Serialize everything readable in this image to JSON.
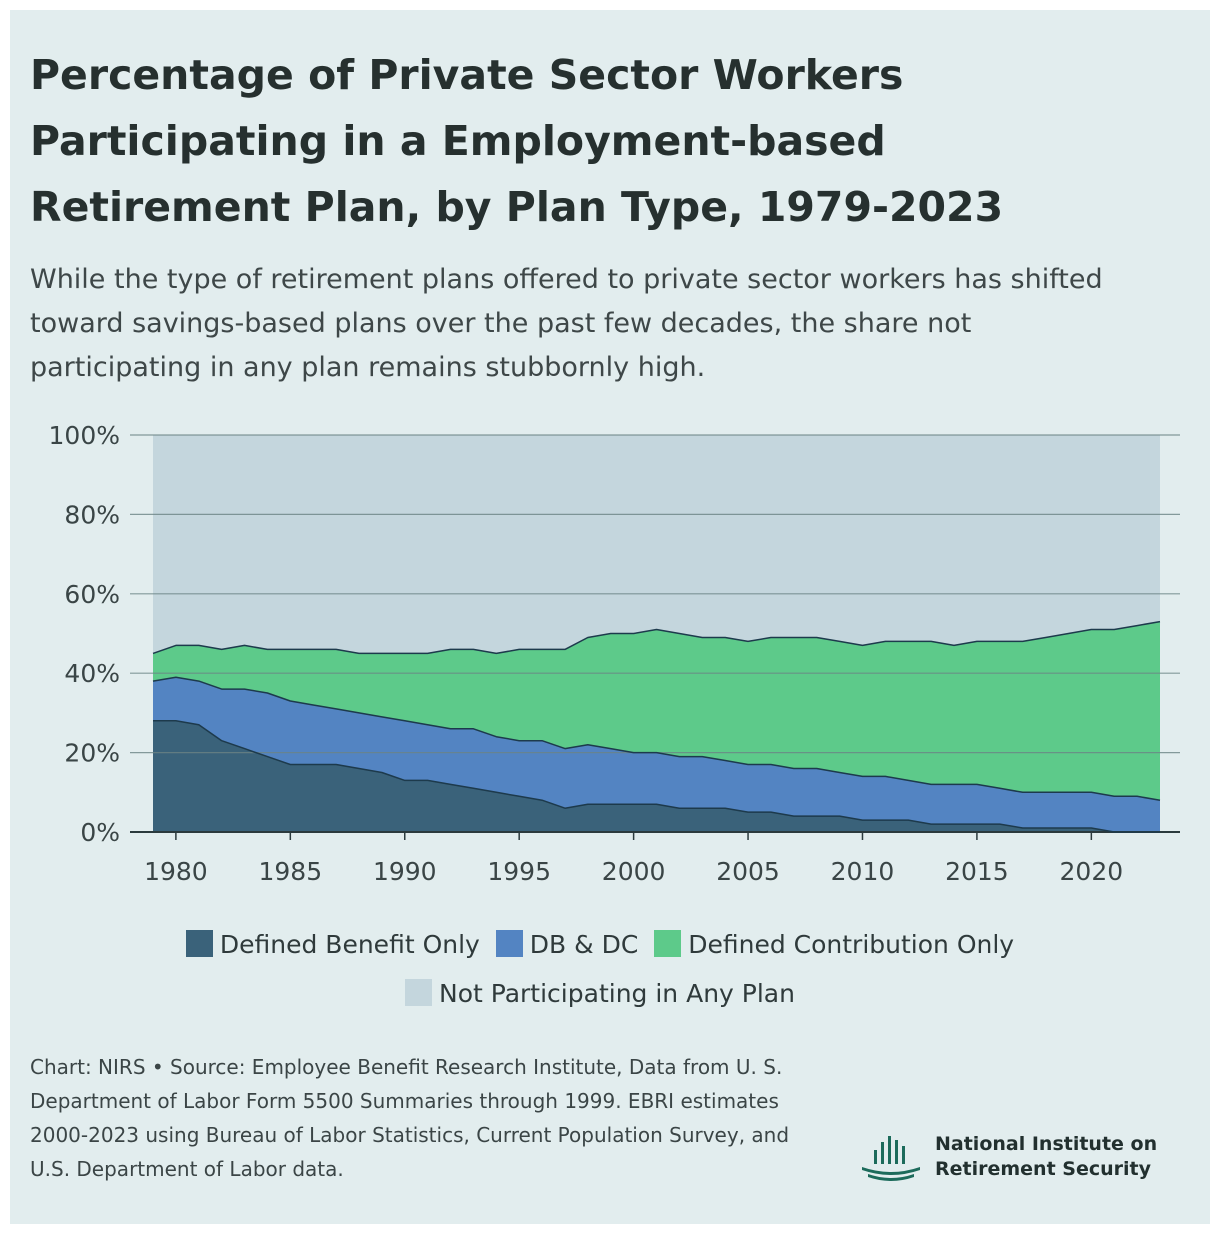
{
  "title": "Percentage of Private Sector Workers Participating in a Employment-based Retirement Plan, by Plan Type, 1979-2023",
  "subtitle": "While the type of retirement plans offered to private sector workers has shifted toward savings-based plans over the past few decades, the share not participating in any plan remains stubbornly high.",
  "colors": {
    "background": "#e2edee",
    "db_only": "#3a627a",
    "db_dc": "#5384c2",
    "dc_only": "#5dca8a",
    "not_participating": "#c4d6dd",
    "outline": "#1d3a4c",
    "brand": "#1c6b5b"
  },
  "chart_data": {
    "type": "area",
    "stacked": true,
    "x": [
      1979,
      1980,
      1981,
      1982,
      1983,
      1984,
      1985,
      1986,
      1987,
      1988,
      1989,
      1990,
      1991,
      1992,
      1993,
      1994,
      1995,
      1996,
      1997,
      1998,
      1999,
      2000,
      2001,
      2002,
      2003,
      2004,
      2005,
      2006,
      2007,
      2008,
      2009,
      2010,
      2011,
      2012,
      2013,
      2014,
      2015,
      2016,
      2017,
      2018,
      2019,
      2020,
      2021,
      2022,
      2023
    ],
    "series": [
      {
        "name": "Defined Benefit Only",
        "values": [
          28,
          28,
          27,
          23,
          21,
          19,
          17,
          17,
          17,
          16,
          15,
          13,
          13,
          12,
          11,
          10,
          9,
          8,
          6,
          7,
          7,
          7,
          7,
          6,
          6,
          6,
          5,
          5,
          4,
          4,
          4,
          3,
          3,
          3,
          2,
          2,
          2,
          2,
          1,
          1,
          1,
          1,
          0,
          0,
          0
        ]
      },
      {
        "name": "DB & DC",
        "values": [
          10,
          11,
          11,
          13,
          15,
          16,
          16,
          15,
          14,
          14,
          14,
          15,
          14,
          14,
          15,
          14,
          14,
          15,
          15,
          15,
          14,
          13,
          13,
          13,
          13,
          12,
          12,
          12,
          12,
          12,
          11,
          11,
          11,
          10,
          10,
          10,
          10,
          9,
          9,
          9,
          9,
          9,
          9,
          9,
          8
        ]
      },
      {
        "name": "Defined Contribution Only",
        "values": [
          7,
          8,
          9,
          10,
          11,
          11,
          13,
          14,
          15,
          15,
          16,
          17,
          18,
          20,
          20,
          21,
          23,
          23,
          25,
          27,
          29,
          30,
          31,
          31,
          30,
          31,
          31,
          32,
          33,
          33,
          33,
          33,
          34,
          35,
          36,
          35,
          36,
          37,
          38,
          39,
          40,
          41,
          42,
          43,
          45
        ]
      },
      {
        "name": "Not Participating in Any Plan",
        "values": [
          55,
          53,
          53,
          54,
          53,
          54,
          54,
          54,
          54,
          55,
          55,
          55,
          55,
          54,
          54,
          55,
          54,
          54,
          54,
          51,
          50,
          50,
          49,
          50,
          51,
          51,
          52,
          51,
          51,
          51,
          52,
          53,
          52,
          52,
          52,
          53,
          52,
          52,
          52,
          51,
          50,
          49,
          49,
          48,
          47
        ]
      }
    ],
    "y_ticks": [
      "0%",
      "20%",
      "40%",
      "60%",
      "80%",
      "100%"
    ],
    "y_tick_values": [
      0,
      20,
      40,
      60,
      80,
      100
    ],
    "x_ticks": [
      "1980",
      "1985",
      "1990",
      "1995",
      "2000",
      "2005",
      "2010",
      "2015",
      "2020"
    ],
    "x_tick_values": [
      1980,
      1985,
      1990,
      1995,
      2000,
      2005,
      2010,
      2015,
      2020
    ],
    "xlim": [
      1979,
      2023
    ],
    "ylim": [
      0,
      100
    ],
    "grid": true,
    "legend_position": "bottom"
  },
  "legend": {
    "db_only": "Defined Benefit Only",
    "db_dc": "DB & DC",
    "dc_only": "Defined Contribution Only",
    "not_participating": "Not Participating in Any Plan"
  },
  "source": "Chart: NIRS • Source: Employee Benefit Research Institute, Data from U. S. Department of Labor Form 5500 Summaries through 1999. EBRI estimates 2000-2023 using Bureau of Labor Statistics, Current Population Survey, and U.S. Department of Labor data.",
  "brand": {
    "name": "National Institute on Retirement Security"
  }
}
